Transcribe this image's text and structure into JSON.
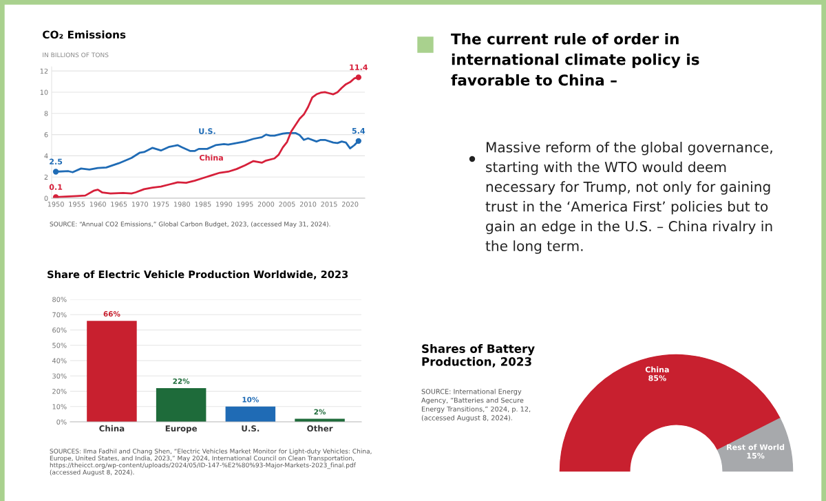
{
  "chart_data": [
    {
      "type": "line",
      "title": "CO₂ Emissions",
      "ylabel": "IN BILLIONS OF TONS",
      "xlim": [
        1949,
        2023.5
      ],
      "xticks": [
        1950,
        1955,
        1960,
        1965,
        1970,
        1975,
        1980,
        1985,
        1990,
        1995,
        2000,
        2005,
        2010,
        2015,
        2020
      ],
      "ylim": [
        0,
        12.4
      ],
      "yticks": [
        0,
        2,
        4,
        6,
        8,
        10,
        12
      ],
      "grid": "y",
      "series": [
        {
          "name": "U.S.",
          "color": "#1f6bb5",
          "x": [
            1950,
            1953,
            1954,
            1956,
            1958,
            1960,
            1962,
            1965,
            1968,
            1970,
            1971,
            1973,
            1975,
            1977,
            1979,
            1980,
            1982,
            1983,
            1984,
            1986,
            1988,
            1990,
            1991,
            1993,
            1995,
            1997,
            1999,
            2000,
            2001,
            2002,
            2004,
            2005,
            2007,
            2008,
            2009,
            2010,
            2012,
            2013,
            2014,
            2016,
            2017,
            2018,
            2019,
            2020,
            2021,
            2022
          ],
          "values": [
            2.5,
            2.55,
            2.45,
            2.8,
            2.7,
            2.85,
            2.9,
            3.3,
            3.8,
            4.3,
            4.35,
            4.75,
            4.5,
            4.85,
            5.0,
            4.8,
            4.45,
            4.45,
            4.65,
            4.65,
            5.0,
            5.1,
            5.05,
            5.2,
            5.35,
            5.6,
            5.75,
            6.0,
            5.9,
            5.9,
            6.1,
            6.15,
            6.15,
            5.95,
            5.5,
            5.65,
            5.35,
            5.5,
            5.5,
            5.25,
            5.2,
            5.35,
            5.25,
            4.7,
            5.0,
            5.4
          ],
          "value_labels": [
            "2.5",
            null,
            null,
            null,
            null,
            null,
            null,
            null,
            null,
            null,
            null,
            null,
            null,
            null,
            null,
            null,
            null,
            null,
            null,
            null,
            null,
            null,
            null,
            null,
            null,
            null,
            null,
            null,
            null,
            null,
            null,
            null,
            null,
            null,
            null,
            null,
            null,
            null,
            null,
            null,
            null,
            null,
            null,
            null,
            null,
            "5.4"
          ]
        },
        {
          "name": "China",
          "color": "#d6203a",
          "x": [
            1950,
            1955,
            1957,
            1959,
            1960,
            1961,
            1963,
            1966,
            1968,
            1969,
            1971,
            1973,
            1975,
            1977,
            1979,
            1981,
            1983,
            1985,
            1987,
            1989,
            1991,
            1993,
            1995,
            1997,
            1999,
            2000,
            2002,
            2003,
            2004,
            2005,
            2006,
            2007,
            2008,
            2009,
            2010,
            2011,
            2012,
            2013,
            2014,
            2015,
            2016,
            2017,
            2018,
            2019,
            2020,
            2021,
            2022
          ],
          "values": [
            0.1,
            0.2,
            0.25,
            0.7,
            0.8,
            0.55,
            0.45,
            0.5,
            0.45,
            0.55,
            0.85,
            1.0,
            1.1,
            1.3,
            1.5,
            1.45,
            1.65,
            1.9,
            2.15,
            2.4,
            2.5,
            2.75,
            3.1,
            3.5,
            3.35,
            3.55,
            3.75,
            4.1,
            4.8,
            5.3,
            6.3,
            6.9,
            7.5,
            7.9,
            8.6,
            9.5,
            9.8,
            9.95,
            10.0,
            9.9,
            9.8,
            10.0,
            10.4,
            10.75,
            10.95,
            11.3,
            11.4
          ],
          "value_labels": [
            "0.1",
            null,
            null,
            null,
            null,
            null,
            null,
            null,
            null,
            null,
            null,
            null,
            null,
            null,
            null,
            null,
            null,
            null,
            null,
            null,
            null,
            null,
            null,
            null,
            null,
            null,
            null,
            null,
            null,
            null,
            null,
            null,
            null,
            null,
            null,
            null,
            null,
            null,
            null,
            null,
            null,
            null,
            null,
            null,
            null,
            null,
            "11.4"
          ]
        }
      ],
      "annotations": [
        "SOURCE: “Annual CO2 Emissions,” Global Carbon Budget, 2023, (accessed May 31, 2024)."
      ]
    },
    {
      "type": "other",
      "title": "The current rule of order in international climate policy is favorable to China –",
      "annotations": [
        "Massive reform of the global governance, starting with the WTO would deem necessary for Trump, not only for gaining trust in the ‘America First’ policies but to gain an edge in the U.S. – China rivalry in the long term."
      ]
    },
    {
      "type": "bar",
      "title": "Share of Electric Vehicle Production Worldwide, 2023",
      "categories": [
        "China",
        "Europe",
        "U.S.",
        "Other"
      ],
      "values": [
        66,
        22,
        10,
        2
      ],
      "colors": [
        "#c8202f",
        "#1e6b3a",
        "#1f6bb5",
        "#1e6b3a"
      ],
      "value_labels": [
        "66%",
        "22%",
        "10%",
        "2%"
      ],
      "ylim": [
        0,
        80
      ],
      "yticks": [
        {
          "value": 0,
          "label": "0%"
        },
        {
          "value": 10,
          "label": "10%"
        },
        {
          "value": 20,
          "label": "20%"
        },
        {
          "value": 30,
          "label": "30%"
        },
        {
          "value": 40,
          "label": "40%"
        },
        {
          "value": 50,
          "label": "50%"
        },
        {
          "value": 60,
          "label": "60%"
        },
        {
          "value": 70,
          "label": "70%"
        },
        {
          "value": 80,
          "label": "80%"
        }
      ],
      "grid": "y",
      "annotations": [
        "SOURCES: Ilma Fadhil and Chang Shen, “Electric Vehicles Market Monitor for Light-duty Vehicles: China, Europe, United States, and India, 2023,” May 2024, International Council on Clean Transportation, https://theicct.org/wp-content/uploads/2024/05/ID-147-%E2%80%93-Major-Markets-2023_final.pdf (accessed August 8, 2024)."
      ]
    },
    {
      "type": "donut",
      "title": "Shares of Battery Production, 2023",
      "categories": [
        "China",
        "Rest of World"
      ],
      "values": [
        85,
        15
      ],
      "colors": [
        "#c8202f",
        "#a7a9ac"
      ],
      "value_labels": [
        "85%",
        "15%"
      ],
      "annotations": [
        "SOURCE: International Energy Agency, “Batteries and Secure Energy Transitions,” 2024, p. 12, (accessed August 8, 2024)."
      ]
    }
  ]
}
